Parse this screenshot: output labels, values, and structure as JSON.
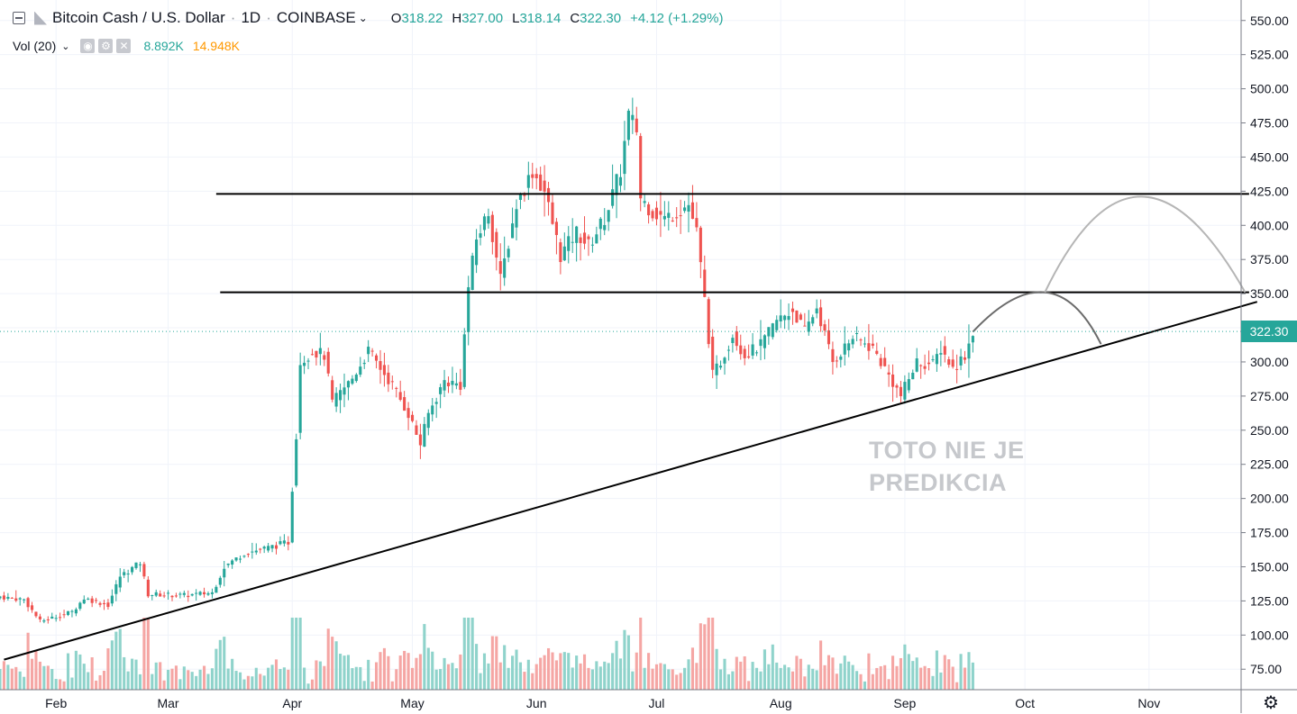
{
  "header": {
    "symbol": "Bitcoin Cash / U.S. Dollar",
    "interval": "1D",
    "exchange": "COINBASE",
    "open_label": "O",
    "open": "318.22",
    "high_label": "H",
    "high": "327.00",
    "low_label": "L",
    "low": "318.14",
    "close_label": "C",
    "close": "322.30",
    "change": "+4.12 (+1.29%)"
  },
  "volume_legend": {
    "label": "Vol (20)",
    "value1": "8.892K",
    "value2": "14.948K"
  },
  "last_price_tag": "322.30",
  "annotation": {
    "line1": "TOTO NIE JE",
    "line2": "PREDIKCIA"
  },
  "chart_data": {
    "type": "candlestick",
    "title": "Bitcoin Cash / U.S. Dollar",
    "xlabel": "",
    "ylabel": "",
    "ylim": [
      60,
      565
    ],
    "x_range": [
      "2019-01-18",
      "2019-11-24"
    ],
    "y_ticks": [
      "75.00",
      "100.00",
      "125.00",
      "150.00",
      "175.00",
      "200.00",
      "225.00",
      "250.00",
      "275.00",
      "300.00",
      "325.00",
      "350.00",
      "375.00",
      "400.00",
      "425.00",
      "450.00",
      "475.00",
      "500.00",
      "525.00",
      "550.00"
    ],
    "x_ticks": [
      {
        "label": "Feb",
        "date": "2019-02-01"
      },
      {
        "label": "Mar",
        "date": "2019-03-01"
      },
      {
        "label": "Apr",
        "date": "2019-04-01"
      },
      {
        "label": "May",
        "date": "2019-05-01"
      },
      {
        "label": "Jun",
        "date": "2019-06-01"
      },
      {
        "label": "Jul",
        "date": "2019-07-01"
      },
      {
        "label": "Aug",
        "date": "2019-08-01"
      },
      {
        "label": "Sep",
        "date": "2019-09-01"
      },
      {
        "label": "Oct",
        "date": "2019-10-01"
      },
      {
        "label": "Nov",
        "date": "2019-11-01"
      }
    ],
    "close_anchors": [
      {
        "date": "2019-01-18",
        "close": 128
      },
      {
        "date": "2019-01-24",
        "close": 126
      },
      {
        "date": "2019-01-28",
        "close": 110
      },
      {
        "date": "2019-02-05",
        "close": 117
      },
      {
        "date": "2019-02-08",
        "close": 127
      },
      {
        "date": "2019-02-14",
        "close": 122
      },
      {
        "date": "2019-02-17",
        "close": 143
      },
      {
        "date": "2019-02-22",
        "close": 153
      },
      {
        "date": "2019-02-24",
        "close": 130
      },
      {
        "date": "2019-03-05",
        "close": 129
      },
      {
        "date": "2019-03-12",
        "close": 131
      },
      {
        "date": "2019-03-15",
        "close": 150
      },
      {
        "date": "2019-03-20",
        "close": 160
      },
      {
        "date": "2019-03-26",
        "close": 164
      },
      {
        "date": "2019-03-31",
        "close": 168
      },
      {
        "date": "2019-04-02",
        "close": 247
      },
      {
        "date": "2019-04-03",
        "close": 300
      },
      {
        "date": "2019-04-06",
        "close": 308
      },
      {
        "date": "2019-04-09",
        "close": 305
      },
      {
        "date": "2019-04-11",
        "close": 270
      },
      {
        "date": "2019-04-16",
        "close": 288
      },
      {
        "date": "2019-04-20",
        "close": 308
      },
      {
        "date": "2019-04-26",
        "close": 283
      },
      {
        "date": "2019-04-30",
        "close": 262
      },
      {
        "date": "2019-05-03",
        "close": 240
      },
      {
        "date": "2019-05-05",
        "close": 262
      },
      {
        "date": "2019-05-09",
        "close": 286
      },
      {
        "date": "2019-05-13",
        "close": 283
      },
      {
        "date": "2019-05-15",
        "close": 355
      },
      {
        "date": "2019-05-17",
        "close": 390
      },
      {
        "date": "2019-05-20",
        "close": 410
      },
      {
        "date": "2019-05-23",
        "close": 360
      },
      {
        "date": "2019-05-27",
        "close": 415
      },
      {
        "date": "2019-05-31",
        "close": 440
      },
      {
        "date": "2019-06-03",
        "close": 425
      },
      {
        "date": "2019-06-07",
        "close": 378
      },
      {
        "date": "2019-06-11",
        "close": 395
      },
      {
        "date": "2019-06-14",
        "close": 385
      },
      {
        "date": "2019-06-18",
        "close": 405
      },
      {
        "date": "2019-06-22",
        "close": 440
      },
      {
        "date": "2019-06-24",
        "close": 480
      },
      {
        "date": "2019-06-26",
        "close": 470
      },
      {
        "date": "2019-06-27",
        "close": 420
      },
      {
        "date": "2019-06-30",
        "close": 410
      },
      {
        "date": "2019-07-03",
        "close": 405
      },
      {
        "date": "2019-07-06",
        "close": 410
      },
      {
        "date": "2019-07-09",
        "close": 415
      },
      {
        "date": "2019-07-11",
        "close": 395
      },
      {
        "date": "2019-07-13",
        "close": 345
      },
      {
        "date": "2019-07-15",
        "close": 290
      },
      {
        "date": "2019-07-17",
        "close": 300
      },
      {
        "date": "2019-07-20",
        "close": 320
      },
      {
        "date": "2019-07-23",
        "close": 305
      },
      {
        "date": "2019-07-27",
        "close": 312
      },
      {
        "date": "2019-07-31",
        "close": 330
      },
      {
        "date": "2019-08-04",
        "close": 338
      },
      {
        "date": "2019-08-07",
        "close": 322
      },
      {
        "date": "2019-08-10",
        "close": 340
      },
      {
        "date": "2019-08-14",
        "close": 300
      },
      {
        "date": "2019-08-19",
        "close": 318
      },
      {
        "date": "2019-08-24",
        "close": 310
      },
      {
        "date": "2019-08-28",
        "close": 290
      },
      {
        "date": "2019-08-31",
        "close": 275
      },
      {
        "date": "2019-09-04",
        "close": 300
      },
      {
        "date": "2019-09-08",
        "close": 298
      },
      {
        "date": "2019-09-10",
        "close": 310
      },
      {
        "date": "2019-09-13",
        "close": 295
      },
      {
        "date": "2019-09-16",
        "close": 305
      },
      {
        "date": "2019-09-18",
        "close": 322.3
      }
    ],
    "drawings": {
      "horizontal_lines": [
        {
          "from": "2019-03-13",
          "to": "2019-11-26",
          "price": 423
        },
        {
          "from": "2019-03-14",
          "to": "2019-11-26",
          "price": 351
        }
      ],
      "trend_line": {
        "from": [
          "2019-01-19",
          82
        ],
        "to": [
          "2019-11-28",
          344
        ]
      },
      "arcs": [
        {
          "points": [
            [
              "2019-09-18",
              322
            ],
            [
              "2019-10-06",
              351
            ],
            [
              "2019-10-20",
              313
            ]
          ]
        },
        {
          "points": [
            [
              "2019-10-06",
              351
            ],
            [
              "2019-10-30",
              421
            ],
            [
              "2019-11-25",
              351
            ]
          ]
        }
      ]
    }
  }
}
